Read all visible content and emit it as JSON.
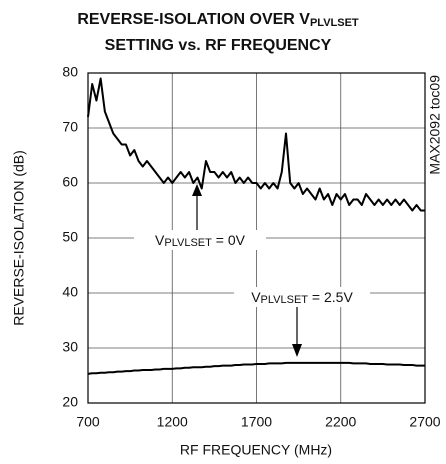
{
  "chart_data": {
    "type": "line",
    "title": {
      "main": "REVERSE-ISOLATION OVER V",
      "sub": "PLVLSET",
      "line2": "SETTING vs. RF FREQUENCY"
    },
    "side_label": "MAX2092 toc09",
    "x_label": "RF FREQUENCY (MHz)",
    "y_label": "REVERSE-ISOLATION (dB)",
    "annotations": [
      {
        "main": "V",
        "sub": "PLVLSET",
        "rest": " = 0V"
      },
      {
        "main": "V",
        "sub": "PLVLSET",
        "rest": " = 2.5V"
      }
    ],
    "x": [
      700,
      725,
      750,
      775,
      800,
      825,
      850,
      875,
      900,
      925,
      950,
      975,
      1000,
      1025,
      1050,
      1075,
      1100,
      1125,
      1150,
      1175,
      1200,
      1225,
      1250,
      1275,
      1300,
      1325,
      1350,
      1375,
      1400,
      1425,
      1450,
      1475,
      1500,
      1525,
      1550,
      1575,
      1600,
      1625,
      1650,
      1675,
      1700,
      1725,
      1750,
      1775,
      1800,
      1825,
      1850,
      1875,
      1900,
      1925,
      1950,
      1975,
      2000,
      2025,
      2050,
      2075,
      2100,
      2125,
      2150,
      2175,
      2200,
      2225,
      2250,
      2275,
      2300,
      2325,
      2350,
      2375,
      2400,
      2425,
      2450,
      2475,
      2500,
      2525,
      2550,
      2575,
      2600,
      2625,
      2650,
      2675,
      2700
    ],
    "series": [
      {
        "color": "#000000",
        "values": [
          72,
          78,
          75,
          79,
          73,
          71,
          69,
          68,
          67,
          67,
          65,
          66,
          64,
          63,
          64,
          63,
          62,
          61,
          60,
          61,
          60,
          61,
          62,
          61,
          62,
          60,
          61,
          59,
          64,
          62,
          62,
          61,
          62,
          61,
          62,
          60,
          61,
          60,
          61,
          60,
          60,
          59,
          60,
          59,
          60,
          59,
          62,
          69,
          60,
          59,
          60,
          58,
          59,
          58,
          57,
          59,
          57,
          58,
          56,
          58,
          57,
          58,
          56,
          57,
          57,
          56,
          58,
          57,
          56,
          57,
          56,
          57,
          56,
          57,
          56,
          57,
          56,
          55,
          56,
          55,
          55
        ]
      },
      {
        "color": "#000000",
        "values": [
          25.3,
          25.4,
          25.4,
          25.5,
          25.5,
          25.6,
          25.6,
          25.7,
          25.7,
          25.8,
          25.8,
          25.9,
          25.9,
          26.0,
          26.0,
          26.0,
          26.1,
          26.1,
          26.2,
          26.2,
          26.2,
          26.3,
          26.3,
          26.4,
          26.4,
          26.5,
          26.5,
          26.5,
          26.6,
          26.6,
          26.7,
          26.7,
          26.8,
          26.8,
          26.8,
          26.9,
          26.9,
          27.0,
          27.0,
          27.0,
          27.1,
          27.1,
          27.1,
          27.2,
          27.2,
          27.2,
          27.2,
          27.3,
          27.3,
          27.3,
          27.3,
          27.3,
          27.3,
          27.3,
          27.3,
          27.3,
          27.3,
          27.3,
          27.3,
          27.3,
          27.3,
          27.3,
          27.3,
          27.2,
          27.2,
          27.2,
          27.2,
          27.1,
          27.1,
          27.1,
          27.1,
          27.0,
          27.0,
          27.0,
          27.0,
          26.9,
          26.9,
          26.9,
          26.8,
          26.8,
          26.8
        ]
      }
    ],
    "xlim": [
      700,
      2700
    ],
    "xticks": [
      700,
      1200,
      1700,
      2200,
      2700
    ],
    "ylim": [
      20,
      80
    ],
    "yticks": [
      20,
      30,
      40,
      50,
      60,
      70,
      80
    ],
    "grid": true
  }
}
